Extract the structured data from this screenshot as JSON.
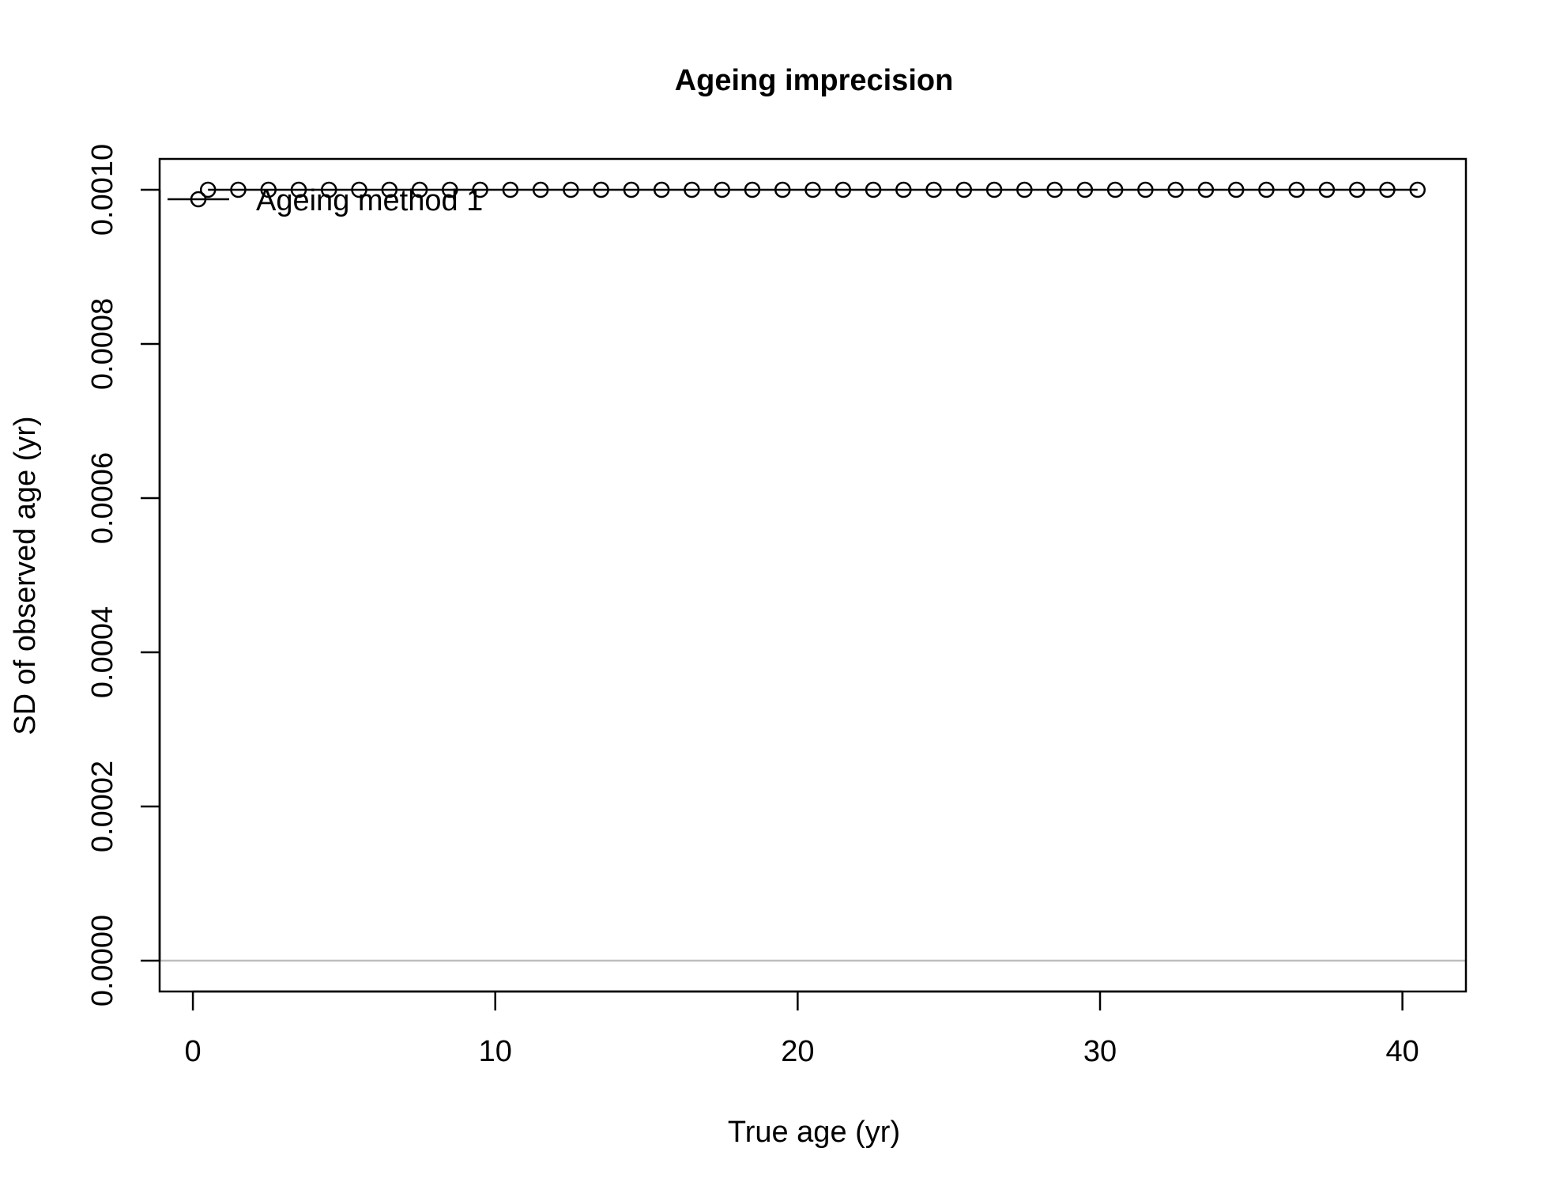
{
  "chart_data": {
    "type": "line",
    "title": "Ageing imprecision",
    "xlabel": "True age (yr)",
    "ylabel": "SD of observed age (yr)",
    "xlim": [
      -1.1,
      42.1
    ],
    "ylim": [
      -4e-05,
      0.00104
    ],
    "x_ticks": [
      0,
      10,
      20,
      30,
      40
    ],
    "x_tick_labels": [
      "0",
      "10",
      "20",
      "30",
      "40"
    ],
    "y_ticks": [
      0,
      0.0002,
      0.0004,
      0.0006,
      0.0008,
      0.001
    ],
    "y_tick_labels": [
      "0.0000",
      "0.0002",
      "0.0004",
      "0.0006",
      "0.0008",
      "0.0010"
    ],
    "reference_line": {
      "y": 0,
      "color": "#bebebe"
    },
    "legend": {
      "position": "top-left",
      "entries": [
        "Ageing method 1"
      ]
    },
    "grid": false,
    "series": [
      {
        "name": "Ageing method 1",
        "color": "#000000",
        "marker": "open-circle",
        "x": [
          0.5,
          1.5,
          2.5,
          3.5,
          4.5,
          5.5,
          6.5,
          7.5,
          8.5,
          9.5,
          10.5,
          11.5,
          12.5,
          13.5,
          14.5,
          15.5,
          16.5,
          17.5,
          18.5,
          19.5,
          20.5,
          21.5,
          22.5,
          23.5,
          24.5,
          25.5,
          26.5,
          27.5,
          28.5,
          29.5,
          30.5,
          31.5,
          32.5,
          33.5,
          34.5,
          35.5,
          36.5,
          37.5,
          38.5,
          39.5,
          40.5
        ],
        "values": [
          0.001,
          0.001,
          0.001,
          0.001,
          0.001,
          0.001,
          0.001,
          0.001,
          0.001,
          0.001,
          0.001,
          0.001,
          0.001,
          0.001,
          0.001,
          0.001,
          0.001,
          0.001,
          0.001,
          0.001,
          0.001,
          0.001,
          0.001,
          0.001,
          0.001,
          0.001,
          0.001,
          0.001,
          0.001,
          0.001,
          0.001,
          0.001,
          0.001,
          0.001,
          0.001,
          0.001,
          0.001,
          0.001,
          0.001,
          0.001,
          0.001
        ]
      }
    ]
  }
}
